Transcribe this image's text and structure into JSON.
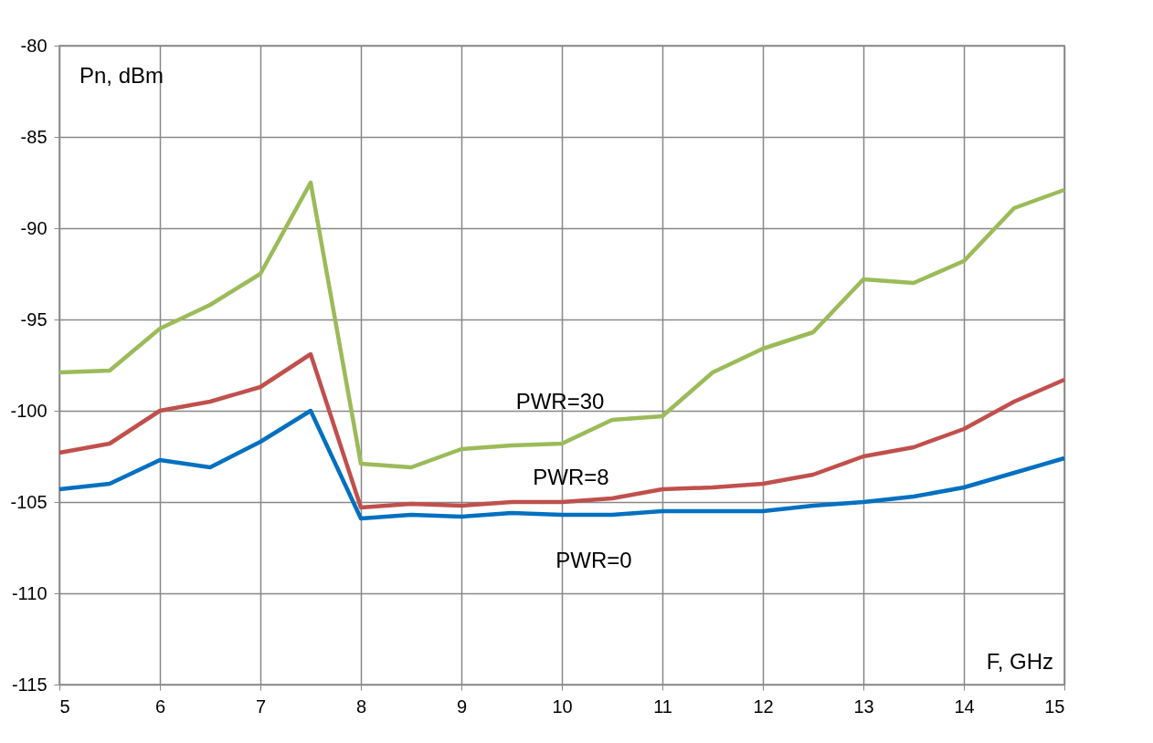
{
  "chart_data": {
    "type": "line",
    "xlabel": "F, GHz",
    "ylabel": "Pn, dBm",
    "x": [
      5,
      5.5,
      6,
      6.5,
      7,
      7.5,
      8,
      8.5,
      9,
      9.5,
      10,
      10.5,
      11,
      11.5,
      12,
      12.5,
      13,
      13.5,
      14,
      14.5,
      15
    ],
    "series": [
      {
        "name": "PWR=30",
        "color": "#9bbb59",
        "values": [
          -97.9,
          -97.8,
          -95.5,
          -94.2,
          -92.5,
          -87.5,
          -102.9,
          -103.1,
          -102.1,
          -101.9,
          -101.8,
          -100.5,
          -100.3,
          -97.9,
          -96.6,
          -95.7,
          -92.8,
          -93.0,
          -91.8,
          -88.9,
          -87.9
        ]
      },
      {
        "name": "PWR=8",
        "color": "#c0504d",
        "values": [
          -102.3,
          -101.8,
          -100.0,
          -99.5,
          -98.7,
          -96.9,
          -105.3,
          -105.1,
          -105.2,
          -105.0,
          -105.0,
          -104.8,
          -104.3,
          -104.2,
          -104.0,
          -103.5,
          -102.5,
          -102.0,
          -101.0,
          -99.5,
          -98.3
        ]
      },
      {
        "name": "PWR=0",
        "color": "#0070c0",
        "values": [
          -104.3,
          -104.0,
          -102.7,
          -103.1,
          -101.7,
          -100.0,
          -105.9,
          -105.7,
          -105.8,
          -105.6,
          -105.7,
          -105.7,
          -105.5,
          -105.5,
          -105.5,
          -105.2,
          -105.0,
          -104.7,
          -104.2,
          -103.4,
          -102.6
        ]
      }
    ],
    "xlim": [
      5,
      15
    ],
    "xticks": [
      5,
      6,
      7,
      8,
      9,
      10,
      11,
      12,
      13,
      14,
      15
    ],
    "ylim": [
      -115,
      -80
    ],
    "yticks": [
      -115,
      -110,
      -105,
      -100,
      -95,
      -90,
      -85,
      -80
    ],
    "grid": true,
    "marker": "none",
    "line_style": "solid"
  }
}
